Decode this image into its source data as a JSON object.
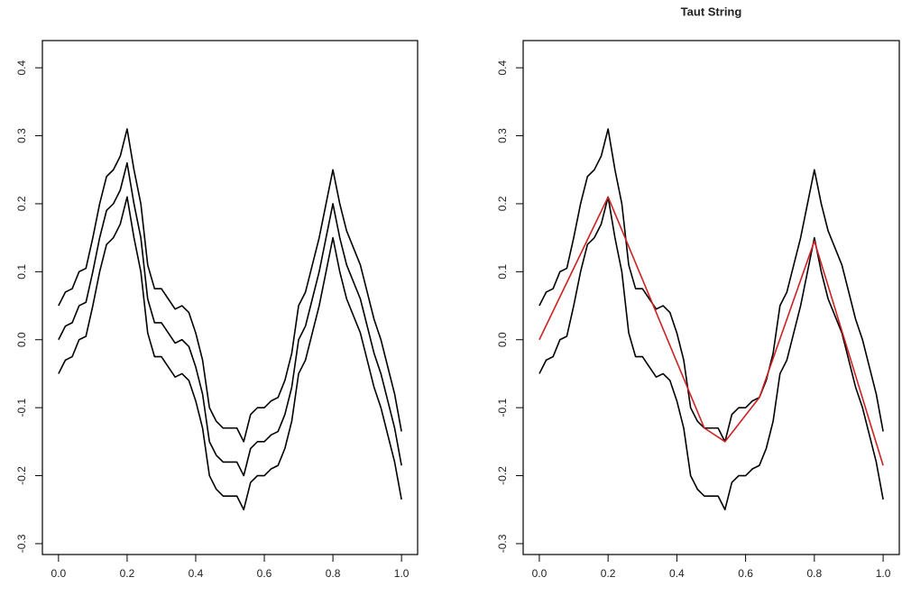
{
  "chart_data": [
    {
      "type": "line",
      "x": [
        0,
        0.02,
        0.04,
        0.06,
        0.08,
        0.1,
        0.12,
        0.14,
        0.16,
        0.18,
        0.2,
        0.22,
        0.24,
        0.26,
        0.28,
        0.3,
        0.32,
        0.34,
        0.36,
        0.38,
        0.4,
        0.42,
        0.44,
        0.46,
        0.48,
        0.5,
        0.52,
        0.54,
        0.56,
        0.58,
        0.6,
        0.62,
        0.64,
        0.66,
        0.68,
        0.7,
        0.72,
        0.74,
        0.76,
        0.78,
        0.8,
        0.82,
        0.84,
        0.86,
        0.88,
        0.9,
        0.92,
        0.94,
        0.96,
        0.98,
        1
      ],
      "series": [
        {
          "color": "#000000",
          "values": [
            0.05,
            0.07,
            0.075,
            0.1,
            0.105,
            0.15,
            0.2,
            0.24,
            0.25,
            0.27,
            0.31,
            0.25,
            0.2,
            0.11,
            0.075,
            0.075,
            0.06,
            0.045,
            0.05,
            0.04,
            0.01,
            -0.03,
            -0.1,
            -0.12,
            -0.13,
            -0.13,
            -0.13,
            -0.15,
            -0.11,
            -0.1,
            -0.1,
            -0.09,
            -0.085,
            -0.06,
            -0.02,
            0.05,
            0.07,
            0.11,
            0.15,
            0.2,
            0.25,
            0.2,
            0.16,
            0.135,
            0.11,
            0.07,
            0.03,
            0,
            -0.04,
            -0.08,
            -0.135
          ]
        },
        {
          "color": "#000000",
          "values": [
            0,
            0.02,
            0.025,
            0.05,
            0.055,
            0.1,
            0.15,
            0.19,
            0.2,
            0.22,
            0.26,
            0.2,
            0.15,
            0.06,
            0.025,
            0.025,
            0.01,
            -0.005,
            0,
            -0.01,
            -0.04,
            -0.08,
            -0.15,
            -0.17,
            -0.18,
            -0.18,
            -0.18,
            -0.2,
            -0.16,
            -0.15,
            -0.15,
            -0.14,
            -0.135,
            -0.11,
            -0.07,
            0,
            0.02,
            0.06,
            0.1,
            0.15,
            0.2,
            0.15,
            0.11,
            0.085,
            0.06,
            0.02,
            -0.02,
            -0.05,
            -0.09,
            -0.13,
            -0.185
          ]
        },
        {
          "color": "#000000",
          "values": [
            -0.05,
            -0.03,
            -0.025,
            0,
            0.005,
            0.05,
            0.1,
            0.14,
            0.15,
            0.17,
            0.21,
            0.15,
            0.1,
            0.01,
            -0.025,
            -0.025,
            -0.04,
            -0.055,
            -0.05,
            -0.06,
            -0.09,
            -0.13,
            -0.2,
            -0.22,
            -0.23,
            -0.23,
            -0.23,
            -0.25,
            -0.21,
            -0.2,
            -0.2,
            -0.19,
            -0.185,
            -0.16,
            -0.12,
            -0.05,
            -0.03,
            0.01,
            0.05,
            0.1,
            0.15,
            0.1,
            0.06,
            0.035,
            0.01,
            -0.03,
            -0.07,
            -0.1,
            -0.14,
            -0.18,
            -0.235
          ]
        }
      ],
      "xlim": [
        -0.047,
        1.047
      ],
      "ylim": [
        -0.316,
        0.44
      ],
      "xticks": [
        {
          "value": 0,
          "label": "0.0"
        },
        0.2,
        0.4,
        0.6,
        0.8,
        {
          "value": 1,
          "label": "1.0"
        }
      ],
      "yticks": [
        -0.3,
        -0.2,
        -0.1,
        {
          "value": 0,
          "label": "0.0"
        },
        0.1,
        0.2,
        0.3,
        0.4
      ]
    },
    {
      "type": "line",
      "title": "Taut String",
      "x": [
        0,
        0.02,
        0.04,
        0.06,
        0.08,
        0.1,
        0.12,
        0.14,
        0.16,
        0.18,
        0.2,
        0.22,
        0.24,
        0.26,
        0.28,
        0.3,
        0.32,
        0.34,
        0.36,
        0.38,
        0.4,
        0.42,
        0.44,
        0.46,
        0.48,
        0.5,
        0.52,
        0.54,
        0.56,
        0.58,
        0.6,
        0.62,
        0.64,
        0.66,
        0.68,
        0.7,
        0.72,
        0.74,
        0.76,
        0.78,
        0.8,
        0.82,
        0.84,
        0.86,
        0.88,
        0.9,
        0.92,
        0.94,
        0.96,
        0.98,
        1
      ],
      "series": [
        {
          "color": "#000000",
          "values": [
            0.05,
            0.07,
            0.075,
            0.1,
            0.105,
            0.15,
            0.2,
            0.24,
            0.25,
            0.27,
            0.31,
            0.25,
            0.2,
            0.11,
            0.075,
            0.075,
            0.06,
            0.045,
            0.05,
            0.04,
            0.01,
            -0.03,
            -0.1,
            -0.12,
            -0.13,
            -0.13,
            -0.13,
            -0.15,
            -0.11,
            -0.1,
            -0.1,
            -0.09,
            -0.085,
            -0.06,
            -0.02,
            0.05,
            0.07,
            0.11,
            0.15,
            0.2,
            0.25,
            0.2,
            0.16,
            0.135,
            0.11,
            0.07,
            0.03,
            0,
            -0.04,
            -0.08,
            -0.135
          ]
        },
        {
          "color": "#000000",
          "values": [
            -0.05,
            -0.03,
            -0.025,
            0,
            0.005,
            0.05,
            0.1,
            0.14,
            0.15,
            0.17,
            0.21,
            0.15,
            0.1,
            0.01,
            -0.025,
            -0.025,
            -0.04,
            -0.055,
            -0.05,
            -0.06,
            -0.09,
            -0.13,
            -0.2,
            -0.22,
            -0.23,
            -0.23,
            -0.23,
            -0.25,
            -0.21,
            -0.2,
            -0.2,
            -0.19,
            -0.185,
            -0.16,
            -0.12,
            -0.05,
            -0.03,
            0.01,
            0.05,
            0.1,
            0.15,
            0.1,
            0.06,
            0.035,
            0.01,
            -0.03,
            -0.07,
            -0.1,
            -0.14,
            -0.18,
            -0.235
          ]
        },
        {
          "color": "#cc2222",
          "x": [
            0,
            0.2,
            0.48,
            0.54,
            0.64,
            0.8,
            1
          ],
          "values": [
            0,
            0.21,
            -0.13,
            -0.15,
            -0.085,
            0.145,
            -0.185
          ]
        }
      ],
      "xlim": [
        -0.047,
        1.047
      ],
      "ylim": [
        -0.316,
        0.44
      ],
      "xticks": [
        {
          "value": 0,
          "label": "0.0"
        },
        0.2,
        0.4,
        0.6,
        0.8,
        {
          "value": 1,
          "label": "1.0"
        }
      ],
      "yticks": [
        -0.3,
        -0.2,
        -0.1,
        {
          "value": 0,
          "label": "0.0"
        },
        0.1,
        0.2,
        0.3,
        0.4
      ]
    }
  ]
}
